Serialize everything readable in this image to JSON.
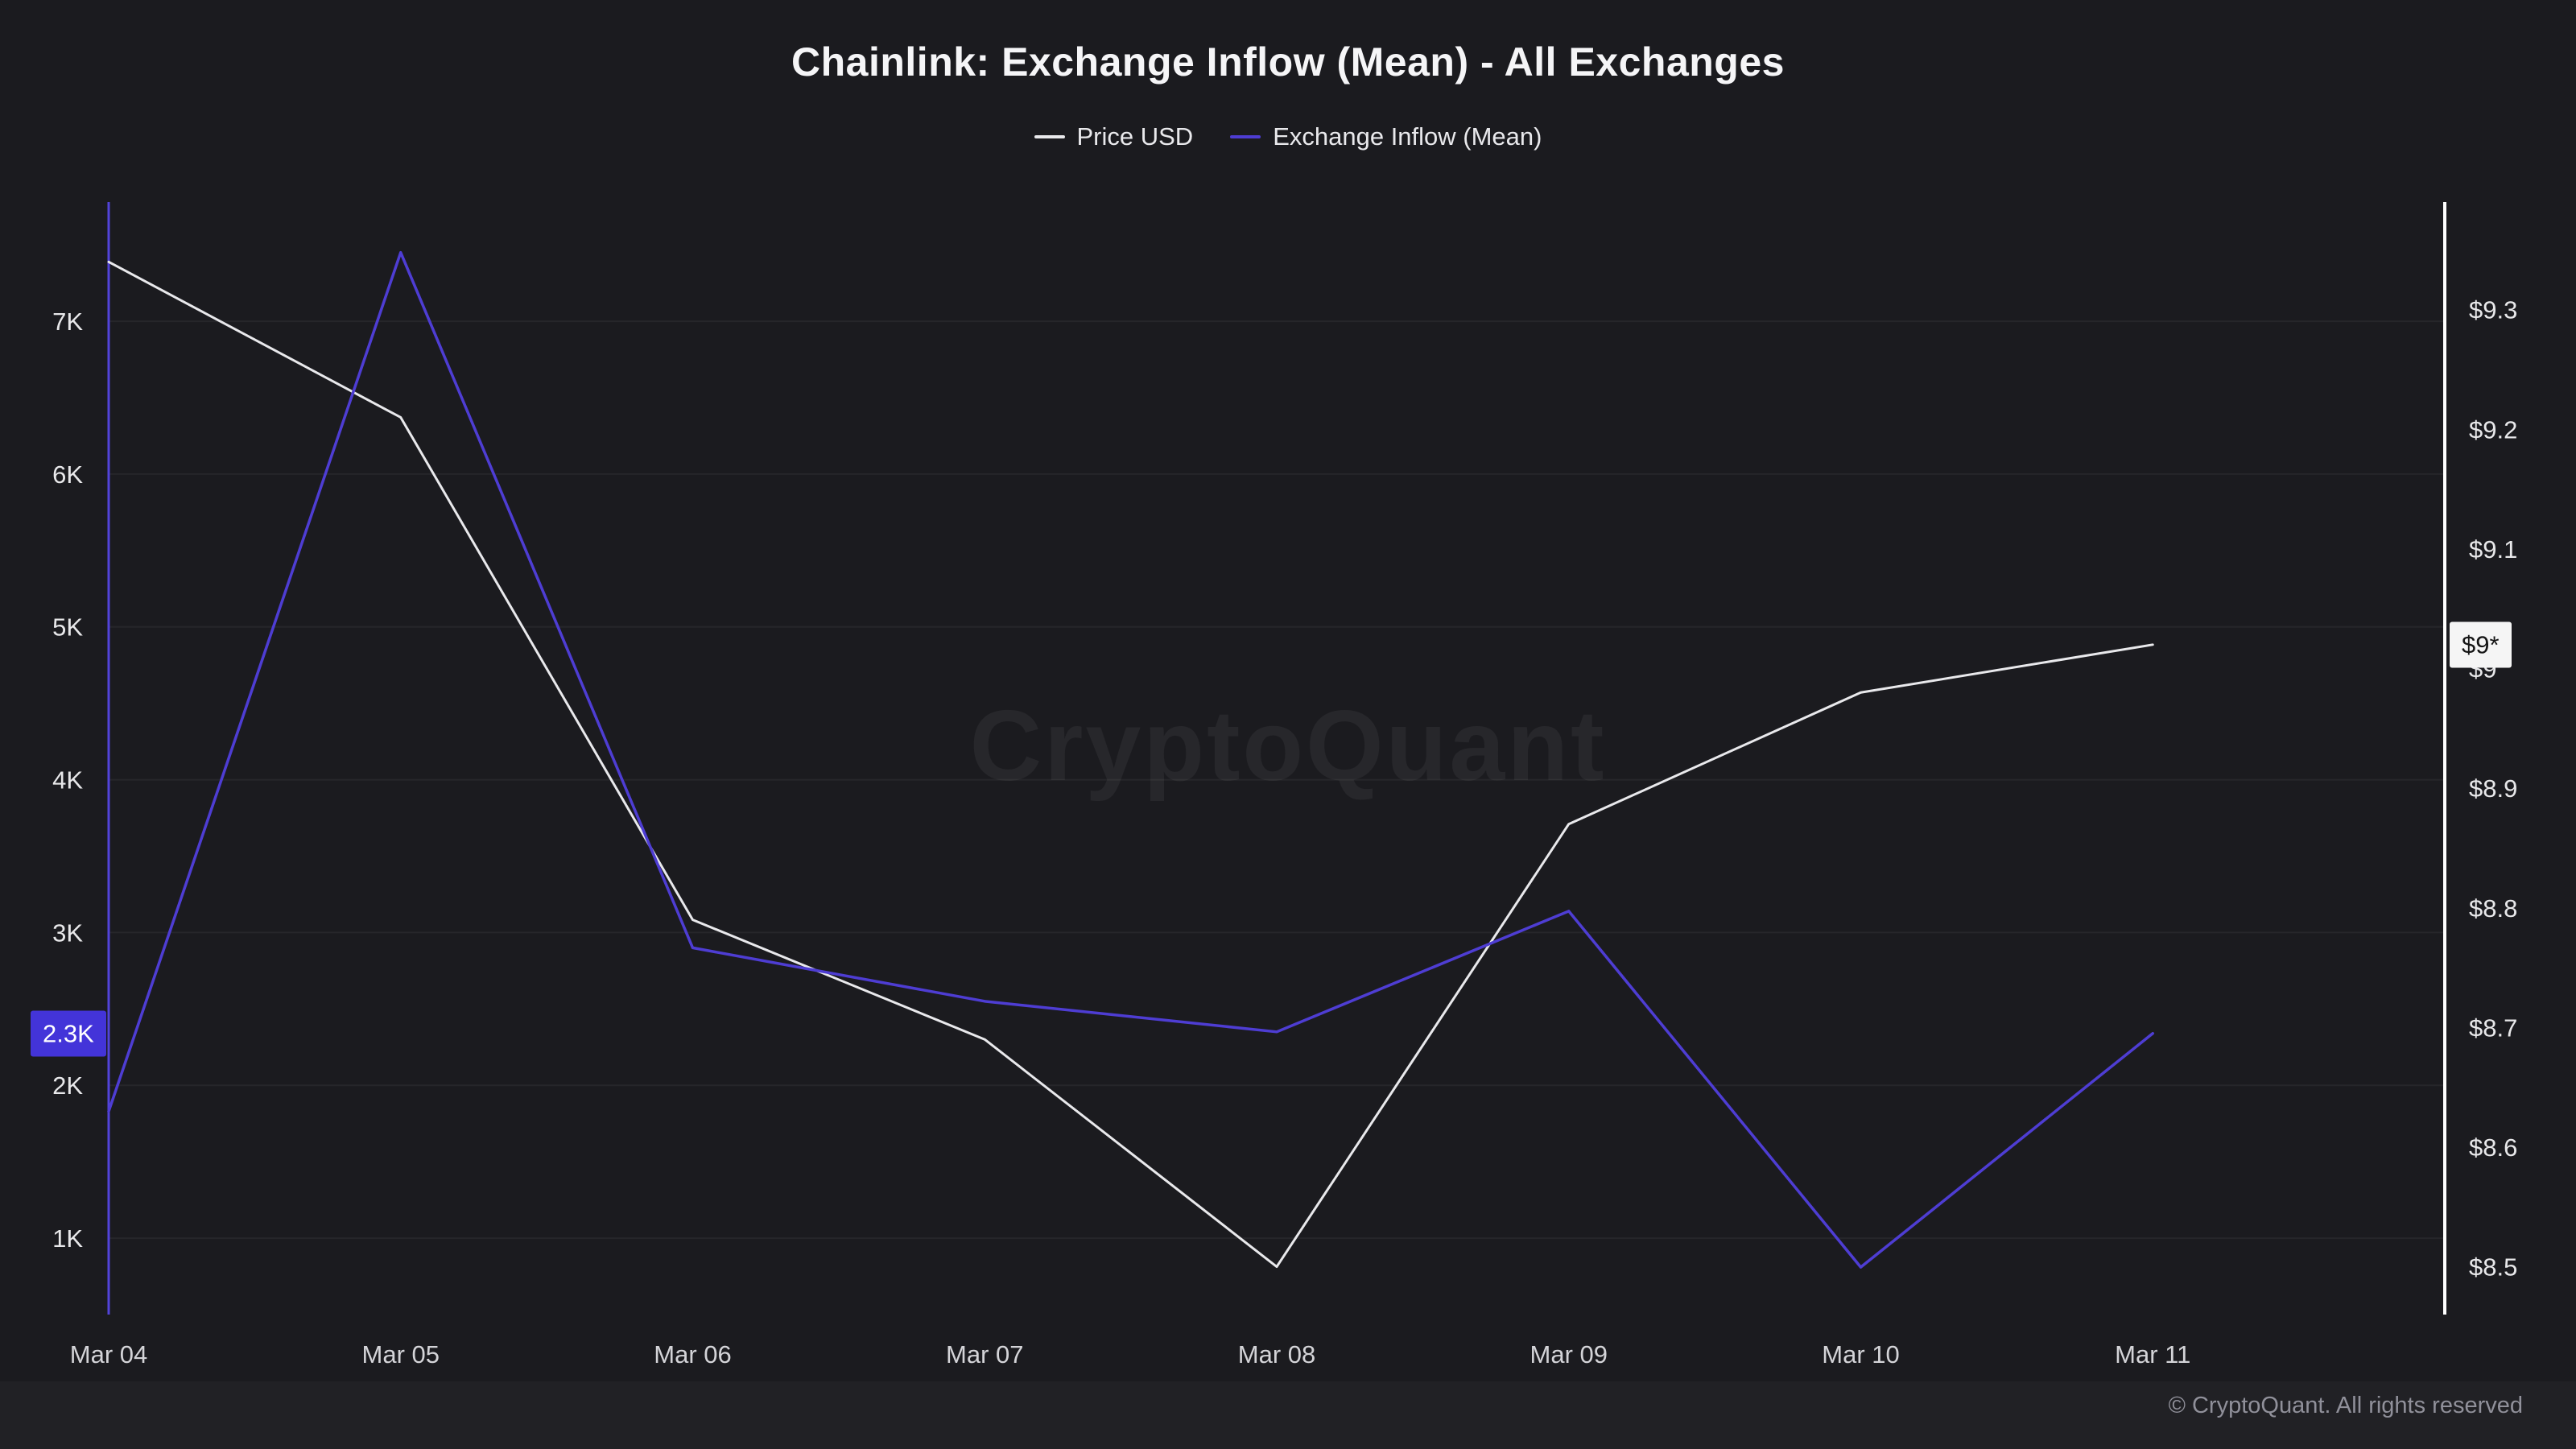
{
  "title": "Chainlink: Exchange Inflow (Mean) - All Exchanges",
  "watermark": "CryptoQuant",
  "footer": "© CryptoQuant. All rights reserved",
  "legend": [
    {
      "label": "Price USD",
      "color": "#e9e9ec"
    },
    {
      "label": "Exchange Inflow (Mean)",
      "color": "#4e3dd3"
    }
  ],
  "badges": {
    "inflow": {
      "text": "2.3K",
      "bg": "#4334d9",
      "fg": "#ffffff"
    },
    "price": {
      "text": "$9*",
      "bg": "#f5f5f5",
      "fg": "#151515"
    }
  },
  "colors": {
    "background": "#1b1b1f",
    "left_spine": "#5243d9",
    "right_spine": "#ffffff",
    "grid": "rgba(255,255,255,0.05)",
    "axis_text": "#e8e8ea",
    "x_axis_text": "#d4d4d8"
  },
  "chart_data": {
    "type": "line",
    "title": "Chainlink: Exchange Inflow (Mean) - All Exchanges",
    "x": [
      "Mar 04",
      "Mar 05",
      "Mar 06",
      "Mar 07",
      "Mar 08",
      "Mar 09",
      "Mar 10",
      "Mar 11"
    ],
    "series": [
      {
        "name": "Price USD",
        "axis": "right",
        "color": "#e9e9ec",
        "values": [
          9.34,
          9.21,
          8.79,
          8.69,
          8.5,
          8.87,
          8.98,
          9.02
        ]
      },
      {
        "name": "Exchange Inflow (Mean)",
        "axis": "left",
        "color": "#4e3dd3",
        "values": [
          1830,
          7450,
          2900,
          2550,
          2350,
          3140,
          810,
          2340
        ]
      }
    ],
    "left_axis": {
      "label": "Exchange Inflow (Mean)",
      "ticks": [
        1000,
        2000,
        3000,
        4000,
        5000,
        6000,
        7000
      ],
      "tick_labels": [
        "1K",
        "2K",
        "3K",
        "4K",
        "5K",
        "6K",
        "7K"
      ],
      "min": 500,
      "max": 7780
    },
    "right_axis": {
      "label": "Price USD",
      "ticks": [
        8.5,
        8.6,
        8.7,
        8.8,
        8.9,
        9.0,
        9.1,
        9.2,
        9.3
      ],
      "tick_labels": [
        "$8.5",
        "$8.6",
        "$8.7",
        "$8.8",
        "$8.9",
        "$9",
        "$9.1",
        "$9.2",
        "$9.3"
      ],
      "min": 8.46,
      "max": 9.39
    },
    "grid": true,
    "legend_position": "top"
  }
}
